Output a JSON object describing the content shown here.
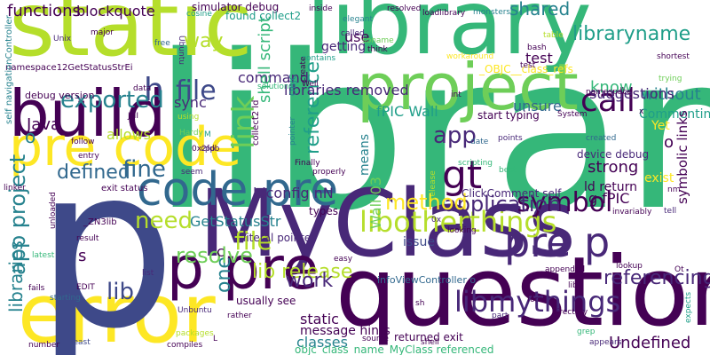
{
  "background_color": "#ffffff",
  "palette": [
    "#440154",
    "#482878",
    "#3e4989",
    "#31688e",
    "#26828e",
    "#1f9e89",
    "#35b779",
    "#6ece58",
    "#b5de2b",
    "#fde725"
  ],
  "words": [
    {
      "text": "library",
      "color": "#35b779"
    },
    {
      "text": "static",
      "color": "#b5de2b"
    },
    {
      "text": "library",
      "color": "#35b779"
    },
    {
      "text": "MyClass",
      "color": "#482878"
    },
    {
      "text": "question",
      "color": "#440154"
    },
    {
      "text": "error",
      "color": "#fde725"
    },
    {
      "text": "p",
      "color": "#3e4989"
    },
    {
      "text": "p pre",
      "color": "#440154"
    },
    {
      "text": "project",
      "color": "#6ece58"
    },
    {
      "text": "build",
      "color": "#440154"
    },
    {
      "text": "pre code",
      "color": "#fde725"
    },
    {
      "text": "code pre",
      "color": "#31688e"
    },
    {
      "text": "app project",
      "color": "#26828e"
    },
    {
      "text": "pre p",
      "color": "#482878"
    },
    {
      "text": "libotherthings",
      "color": "#b5de2b"
    },
    {
      "text": "libmythings",
      "color": "#482878"
    },
    {
      "text": "symbol",
      "color": "#440154"
    },
    {
      "text": "reference",
      "color": "#1f9e89"
    },
    {
      "text": "link",
      "color": "#6ece58"
    },
    {
      "text": "file",
      "color": "#3e4989"
    },
    {
      "text": "h",
      "color": "#3e4989"
    },
    {
      "text": "call",
      "color": "#440154"
    },
    {
      "text": "gt",
      "color": "#440154"
    },
    {
      "text": "app",
      "color": "#482878"
    },
    {
      "text": "application",
      "color": "#482878"
    },
    {
      "text": "exported",
      "color": "#26828e"
    },
    {
      "text": "libraryname",
      "color": "#1f9e89"
    },
    {
      "text": "shared",
      "color": "#26828e"
    },
    {
      "text": "fine",
      "color": "#31688e"
    },
    {
      "text": "defined",
      "color": "#31688e"
    },
    {
      "text": "need",
      "color": "#b5de2b"
    },
    {
      "text": "file",
      "color": "#b5de2b"
    },
    {
      "text": "lib",
      "color": "#3e4989"
    },
    {
      "text": "one",
      "color": "#26828e"
    },
    {
      "text": "method",
      "color": "#fde725"
    },
    {
      "text": "resolve",
      "color": "#6ece58"
    },
    {
      "text": "lib release",
      "color": "#b5de2b"
    },
    {
      "text": "work",
      "color": "#482878"
    },
    {
      "text": "referencing",
      "color": "#482878"
    },
    {
      "text": "Undefined",
      "color": "#440154"
    },
    {
      "text": "libraries",
      "color": "#26828e"
    },
    {
      "text": "GetStatusStr",
      "color": "#26828e"
    },
    {
      "text": "know",
      "color": "#35b779"
    },
    {
      "text": "without",
      "color": "#26828e"
    },
    {
      "text": "strong",
      "color": "#440154"
    },
    {
      "text": "unsure",
      "color": "#31688e"
    },
    {
      "text": "fPIC Wall",
      "color": "#1f9e89"
    },
    {
      "text": "libraries removed",
      "color": "#482878"
    },
    {
      "text": "suggestions",
      "color": "#482878"
    },
    {
      "text": "Commenting",
      "color": "#1f9e89"
    },
    {
      "text": "use",
      "color": "#440154"
    },
    {
      "text": "test",
      "color": "#440154"
    },
    {
      "text": "getting",
      "color": "#482878"
    },
    {
      "text": "way",
      "color": "#b5de2b"
    },
    {
      "text": "command",
      "color": "#482878"
    },
    {
      "text": "sync",
      "color": "#482878"
    },
    {
      "text": "shell script",
      "color": "#35b779"
    },
    {
      "text": "functions",
      "color": "#440154"
    },
    {
      "text": "blockquote",
      "color": "#440154"
    },
    {
      "text": "Java",
      "color": "#440154"
    },
    {
      "text": "allows",
      "color": "#b5de2b"
    },
    {
      "text": "ldconfig nN",
      "color": "#482878"
    },
    {
      "text": "g fPIC",
      "color": "#440154"
    },
    {
      "text": "ld return",
      "color": "#440154"
    },
    {
      "text": "Wall 03",
      "color": "#6ece58"
    },
    {
      "text": "means",
      "color": "#26828e"
    },
    {
      "text": "symbolic links",
      "color": "#440154"
    },
    {
      "text": "exist",
      "color": "#fde725"
    },
    {
      "text": "device debug",
      "color": "#482878"
    },
    {
      "text": "classes",
      "color": "#26828e"
    },
    {
      "text": "static",
      "color": "#440154"
    },
    {
      "text": "message hints",
      "color": "#440154"
    },
    {
      "text": "issue",
      "color": "#3e4989"
    },
    {
      "text": "types",
      "color": "#440154"
    },
    {
      "text": "returned exit",
      "color": "#440154"
    },
    {
      "text": "objc_class_name_MyClass referenced",
      "color": "#35b779"
    },
    {
      "text": "infoViewController o",
      "color": "#31688e"
    },
    {
      "text": "literal pointer",
      "color": "#482878"
    },
    {
      "text": "usually see",
      "color": "#440154"
    },
    {
      "text": "ClickComment self",
      "color": "#482878"
    },
    {
      "text": "start typing",
      "color": "#440154"
    },
    {
      "text": "simulator debug",
      "color": "#440154"
    },
    {
      "text": "found collect2",
      "color": "#1f9e89"
    },
    {
      "text": "debug version",
      "color": "#440154"
    },
    {
      "text": "namespace12GetStatusStrEi",
      "color": "#440154"
    },
    {
      "text": "self navigationController",
      "color": "#26828e"
    },
    {
      "text": "_OBJC__class_refs",
      "color": "#fde725"
    },
    {
      "text": "exit status",
      "color": "#440154"
    },
    {
      "text": "_ZN3lib",
      "color": "#440154"
    },
    {
      "text": "Yet",
      "color": "#fde725"
    },
    {
      "text": "loadlibrary",
      "color": "#440154"
    },
    {
      "text": "resolved",
      "color": "#440154"
    },
    {
      "text": "monsters",
      "color": "#26828e"
    },
    {
      "text": "cosine",
      "color": "#1f9e89"
    },
    {
      "text": "inside",
      "color": "#440154"
    },
    {
      "text": "elegant",
      "color": "#26828e"
    },
    {
      "text": "major",
      "color": "#440154"
    },
    {
      "text": "free",
      "color": "#31688e"
    },
    {
      "text": "Unix",
      "color": "#482878"
    },
    {
      "text": "Ubuntu",
      "color": "#482878"
    },
    {
      "text": "called",
      "color": "#482878"
    },
    {
      "text": "soname",
      "color": "#6ece58"
    },
    {
      "text": "think",
      "color": "#440154"
    },
    {
      "text": "workaround",
      "color": "#fde725"
    },
    {
      "text": "bash",
      "color": "#440154"
    },
    {
      "text": "shortest",
      "color": "#440154"
    },
    {
      "text": "table",
      "color": "#b5de2b"
    },
    {
      "text": "contains",
      "color": "#1f9e89"
    },
    {
      "text": "create",
      "color": "#440154"
    },
    {
      "text": "Well",
      "color": "#440154"
    },
    {
      "text": "solution",
      "color": "#35b779"
    },
    {
      "text": "OBJC",
      "color": "#26828e"
    },
    {
      "text": "pointer",
      "color": "#26828e"
    },
    {
      "text": "int",
      "color": "#440154"
    },
    {
      "text": "namespace",
      "color": "#440154"
    },
    {
      "text": "trying",
      "color": "#6ece58"
    },
    {
      "text": "System",
      "color": "#440154"
    },
    {
      "text": "data",
      "color": "#440154"
    },
    {
      "text": "JNI",
      "color": "#440154"
    },
    {
      "text": "using",
      "color": "#b5de2b"
    },
    {
      "text": "Hardy",
      "color": "#6ece58"
    },
    {
      "text": "follow",
      "color": "#440154"
    },
    {
      "text": "entry",
      "color": "#440154"
    },
    {
      "text": "seem",
      "color": "#482878"
    },
    {
      "text": "0x2fdb",
      "color": "#440154"
    },
    {
      "text": "cpp",
      "color": "#482878"
    },
    {
      "text": "collect2 ld",
      "color": "#440154"
    },
    {
      "text": "Finally",
      "color": "#440154"
    },
    {
      "text": "properly",
      "color": "#440154"
    },
    {
      "text": "points",
      "color": "#482878"
    },
    {
      "text": "date",
      "color": "#31688e"
    },
    {
      "text": "created",
      "color": "#31688e"
    },
    {
      "text": "scripting",
      "color": "#35b779"
    },
    {
      "text": "best",
      "color": "#35b779"
    },
    {
      "text": "release",
      "color": "#b5de2b"
    },
    {
      "text": "invariably",
      "color": "#440154"
    },
    {
      "text": "tell",
      "color": "#482878"
    },
    {
      "text": "linker",
      "color": "#440154"
    },
    {
      "text": "result",
      "color": "#440154"
    },
    {
      "text": "latest",
      "color": "#35b779"
    },
    {
      "text": "fails",
      "color": "#440154"
    },
    {
      "text": "starting",
      "color": "#31688e"
    },
    {
      "text": "EDIT",
      "color": "#440154"
    },
    {
      "text": "list",
      "color": "#482878"
    },
    {
      "text": "easy",
      "color": "#440154"
    },
    {
      "text": "looking",
      "color": "#440154"
    },
    {
      "text": "appended",
      "color": "#440154"
    },
    {
      "text": "lookup",
      "color": "#440154"
    },
    {
      "text": "Unbuntu",
      "color": "#482878"
    },
    {
      "text": "rather",
      "color": "#440154"
    },
    {
      "text": "packages",
      "color": "#b5de2b"
    },
    {
      "text": "compiles",
      "color": "#440154"
    },
    {
      "text": "least",
      "color": "#3e4989"
    },
    {
      "text": "number",
      "color": "#440154"
    },
    {
      "text": "source",
      "color": "#440154"
    },
    {
      "text": "shell",
      "color": "#440154"
    },
    {
      "text": "part",
      "color": "#482878"
    },
    {
      "text": "directory",
      "color": "#440154"
    },
    {
      "text": "form",
      "color": "#440154"
    },
    {
      "text": "grep",
      "color": "#35b779"
    },
    {
      "text": "appears",
      "color": "#482878"
    },
    {
      "text": "expects",
      "color": "#1f9e89"
    },
    {
      "text": "lib",
      "color": "#440154"
    },
    {
      "text": "o",
      "color": "#26828e"
    },
    {
      "text": "o",
      "color": "#440154"
    },
    {
      "text": "s",
      "color": "#440154"
    },
    {
      "text": "c",
      "color": "#440154"
    },
    {
      "text": "x",
      "color": "#440154"
    },
    {
      "text": "L",
      "color": "#440154"
    },
    {
      "text": "0x",
      "color": "#482878"
    },
    {
      "text": "M",
      "color": "#1f9e89"
    },
    {
      "text": "Ot",
      "color": "#440154"
    },
    {
      "text": "sh",
      "color": "#440154"
    },
    {
      "text": "nm",
      "color": "#440154"
    },
    {
      "text": "unloaded",
      "color": "#440154"
    },
    {
      "text": "test",
      "color": "#440154"
    }
  ]
}
